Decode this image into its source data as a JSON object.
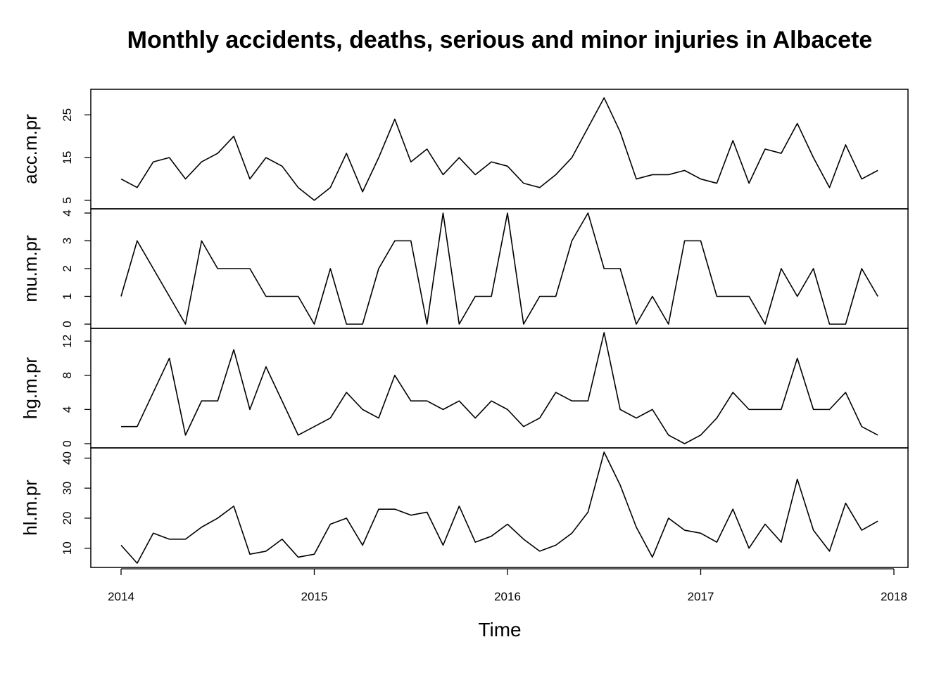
{
  "chart_data": {
    "type": "line",
    "title": "Monthly accidents, deaths, serious and minor injuries in Albacete",
    "xlabel": "Time",
    "x_ticks": [
      "2014",
      "2015",
      "2016",
      "2017",
      "2018"
    ],
    "x_start": "2014-01",
    "x_frequency": "monthly",
    "xlim": [
      2014,
      2018
    ],
    "panels": [
      {
        "name": "acc.m.pr",
        "ylim": [
          4,
          30
        ],
        "y_ticks": [
          5,
          15,
          25
        ],
        "y_tick_labels": [
          "5",
          "15",
          "25"
        ],
        "values": [
          10,
          8,
          14,
          15,
          10,
          14,
          16,
          20,
          10,
          15,
          13,
          8,
          5,
          8,
          16,
          7,
          15,
          24,
          14,
          17,
          11,
          15,
          11,
          14,
          13,
          9,
          8,
          11,
          15,
          22,
          29,
          21,
          10,
          11,
          11,
          12,
          10,
          9,
          19,
          9,
          17,
          16,
          23,
          15,
          8,
          18,
          10,
          12
        ]
      },
      {
        "name": "mu.m.pr",
        "ylim": [
          0,
          4
        ],
        "y_ticks": [
          0,
          1,
          2,
          3,
          4
        ],
        "y_tick_labels": [
          "0",
          "1",
          "2",
          "3",
          "4"
        ],
        "values": [
          1,
          3,
          2,
          1,
          0,
          3,
          2,
          2,
          2,
          1,
          1,
          1,
          0,
          2,
          0,
          0,
          2,
          3,
          3,
          0,
          4,
          0,
          1,
          1,
          4,
          0,
          1,
          1,
          3,
          4,
          2,
          2,
          0,
          1,
          0,
          3,
          3,
          1,
          1,
          1,
          0,
          2,
          1,
          2,
          0,
          0,
          2,
          1
        ]
      },
      {
        "name": "hg.m.pr",
        "ylim": [
          0,
          13
        ],
        "y_ticks": [
          0,
          4,
          8,
          12
        ],
        "y_tick_labels": [
          "0",
          "4",
          "8",
          "12"
        ],
        "values": [
          2,
          2,
          6,
          10,
          1,
          5,
          5,
          11,
          4,
          9,
          5,
          1,
          2,
          3,
          6,
          4,
          3,
          8,
          5,
          5,
          4,
          5,
          3,
          5,
          4,
          2,
          3,
          6,
          5,
          5,
          13,
          4,
          3,
          4,
          1,
          0,
          1,
          3,
          6,
          4,
          4,
          4,
          10,
          4,
          4,
          6,
          2,
          1
        ]
      },
      {
        "name": "hl.m.pr",
        "ylim": [
          5,
          42
        ],
        "y_ticks": [
          10,
          20,
          30,
          40
        ],
        "y_tick_labels": [
          "10",
          "20",
          "30",
          "40"
        ],
        "values": [
          11,
          5,
          15,
          13,
          13,
          17,
          20,
          24,
          8,
          9,
          13,
          7,
          8,
          18,
          20,
          11,
          23,
          23,
          21,
          22,
          11,
          24,
          12,
          14,
          18,
          13,
          9,
          11,
          15,
          22,
          42,
          31,
          17,
          7,
          20,
          16,
          15,
          12,
          23,
          10,
          18,
          12,
          33,
          16,
          9,
          25,
          16,
          19
        ]
      }
    ]
  }
}
